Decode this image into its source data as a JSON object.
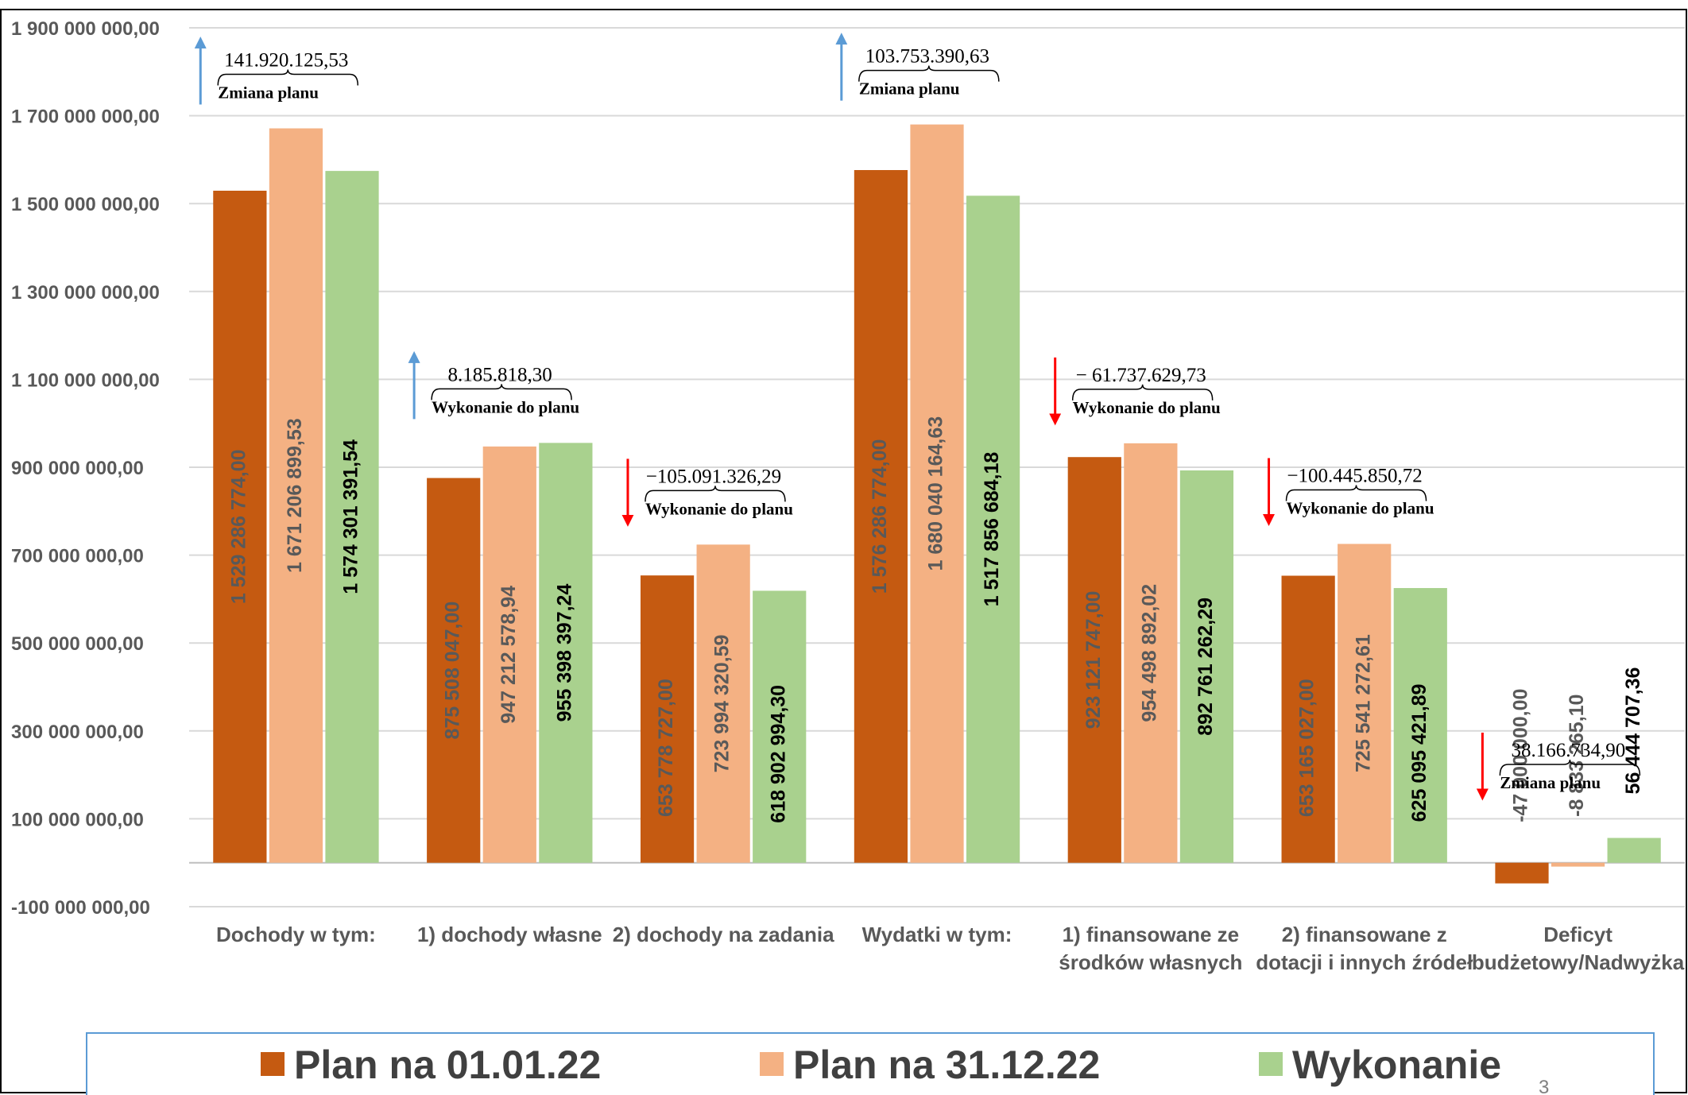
{
  "chart_data": {
    "type": "bar",
    "categories": [
      [
        "Dochody w tym:"
      ],
      [
        "1) dochody własne"
      ],
      [
        "2) dochody na zadania"
      ],
      [
        "Wydatki w tym:"
      ],
      [
        "1) finansowane ze",
        "środków własnych"
      ],
      [
        "2) finansowane z",
        "dotacji i innych źródeł"
      ],
      [
        "Deficyt",
        "budżetowy/Nadwyżka"
      ]
    ],
    "series": [
      {
        "name": "Plan na 01.01.22",
        "color": "#C55A11",
        "label_color": "#595959",
        "values": [
          1529286774.0,
          875508047.0,
          653778727.0,
          1576286774.0,
          923121747.0,
          653165027.0,
          -47000000.0
        ],
        "labels": [
          "1 529 286 774,00",
          "875 508 047,00",
          "653 778 727,00",
          "1 576 286 774,00",
          "923 121 747,00",
          "653 165 027,00",
          "-47 000 000,00"
        ]
      },
      {
        "name": "Plan na 31.12.22",
        "color": "#F4B183",
        "label_color": "#595959",
        "values": [
          1671206899.53,
          947212578.94,
          723994320.59,
          1680040164.63,
          954498892.02,
          725541272.61,
          -8833265.1
        ],
        "labels": [
          "1 671 206 899,53",
          "947 212 578,94",
          "723 994 320,59",
          "1 680 040 164,63",
          "954 498 892,02",
          "725 541 272,61",
          "-8 833 265,10"
        ]
      },
      {
        "name": "Wykonanie",
        "color": "#A9D18E",
        "label_color": "#000000",
        "values": [
          1574301391.54,
          955398397.24,
          618902994.3,
          1517856684.18,
          892761262.29,
          625095421.89,
          56444707.36
        ],
        "labels": [
          "1 574 301 391,54",
          "955 398 397,24",
          "618 902 994,30",
          "1 517 856 684,18",
          "892 761 262,29",
          "625 095 421,89",
          "56 444 707,36"
        ]
      }
    ],
    "y_ticks": [
      {
        "value": 1900000000,
        "label": "1 900 000 000,00"
      },
      {
        "value": 1700000000,
        "label": "1 700 000 000,00"
      },
      {
        "value": 1500000000,
        "label": "1 500 000 000,00"
      },
      {
        "value": 1300000000,
        "label": "1 300 000 000,00"
      },
      {
        "value": 1100000000,
        "label": "1 100 000 000,00"
      },
      {
        "value": 900000000,
        "label": "900 000 000,00"
      },
      {
        "value": 700000000,
        "label": "700 000 000,00"
      },
      {
        "value": 500000000,
        "label": "500 000 000,00"
      },
      {
        "value": 300000000,
        "label": "300 000 000,00"
      },
      {
        "value": 100000000,
        "label": "100 000 000,00"
      },
      {
        "value": -100000000,
        "label": "-100 000 000,00"
      }
    ],
    "ylim": [
      -100000000,
      1900000000
    ],
    "grid": true,
    "legend_placement": "bottom",
    "annotations": [
      {
        "category": 0,
        "value": "141.920.125,53",
        "caption": "Zmiana planu",
        "direction": "up"
      },
      {
        "category": 1,
        "value": "8.185.818,30",
        "caption": "Wykonanie do planu",
        "direction": "up"
      },
      {
        "category": 2,
        "value": "−105.091.326,29",
        "caption": "Wykonanie do planu",
        "direction": "down"
      },
      {
        "category": 3,
        "value": "103.753.390,63",
        "caption": "Zmiana planu",
        "direction": "up"
      },
      {
        "category": 4,
        "value": "− 61.737.629,73",
        "caption": "Wykonanie do planu",
        "direction": "down"
      },
      {
        "category": 5,
        "value": "−100.445.850,72",
        "caption": "Wykonanie do planu",
        "direction": "down"
      },
      {
        "category": 6,
        "value": "38.166.734,90",
        "caption": "Zmiana  planu",
        "direction": "down"
      }
    ],
    "arrow_colors": {
      "up": "#5B9BD5",
      "down": "#FF0000"
    }
  },
  "page_number": "3"
}
